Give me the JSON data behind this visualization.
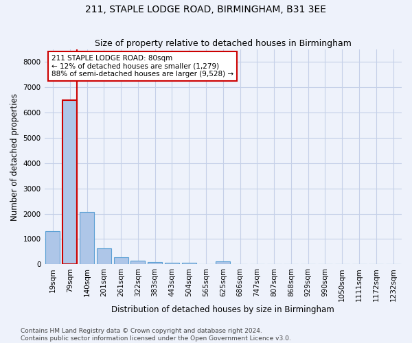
{
  "title": "211, STAPLE LODGE ROAD, BIRMINGHAM, B31 3EE",
  "subtitle": "Size of property relative to detached houses in Birmingham",
  "xlabel": "Distribution of detached houses by size in Birmingham",
  "ylabel": "Number of detached properties",
  "categories": [
    "19sqm",
    "79sqm",
    "140sqm",
    "201sqm",
    "261sqm",
    "322sqm",
    "383sqm",
    "443sqm",
    "504sqm",
    "565sqm",
    "625sqm",
    "686sqm",
    "747sqm",
    "807sqm",
    "868sqm",
    "929sqm",
    "990sqm",
    "1050sqm",
    "1111sqm",
    "1172sqm",
    "1232sqm"
  ],
  "values": [
    1300,
    6500,
    2080,
    630,
    290,
    140,
    90,
    70,
    70,
    0,
    110,
    0,
    0,
    0,
    0,
    0,
    0,
    0,
    0,
    0,
    0
  ],
  "bar_color": "#aec6e8",
  "bar_edge_color": "#5a9fd4",
  "red_bar_index": 1,
  "red_line_x": 1.5,
  "annotation_text": "211 STAPLE LODGE ROAD: 80sqm\n← 12% of detached houses are smaller (1,279)\n88% of semi-detached houses are larger (9,528) →",
  "annotation_box_color": "white",
  "annotation_box_edge_color": "#cc0000",
  "ylim": [
    0,
    8500
  ],
  "yticks": [
    0,
    1000,
    2000,
    3000,
    4000,
    5000,
    6000,
    7000,
    8000
  ],
  "footer": "Contains HM Land Registry data © Crown copyright and database right 2024.\nContains public sector information licensed under the Open Government Licence v3.0.",
  "bg_color": "#eef2fb",
  "grid_color": "#c5d0e8",
  "title_fontsize": 10,
  "subtitle_fontsize": 9,
  "axis_label_fontsize": 8.5,
  "tick_fontsize": 7.5,
  "annotation_fontsize": 7.5,
  "footer_fontsize": 6.5
}
